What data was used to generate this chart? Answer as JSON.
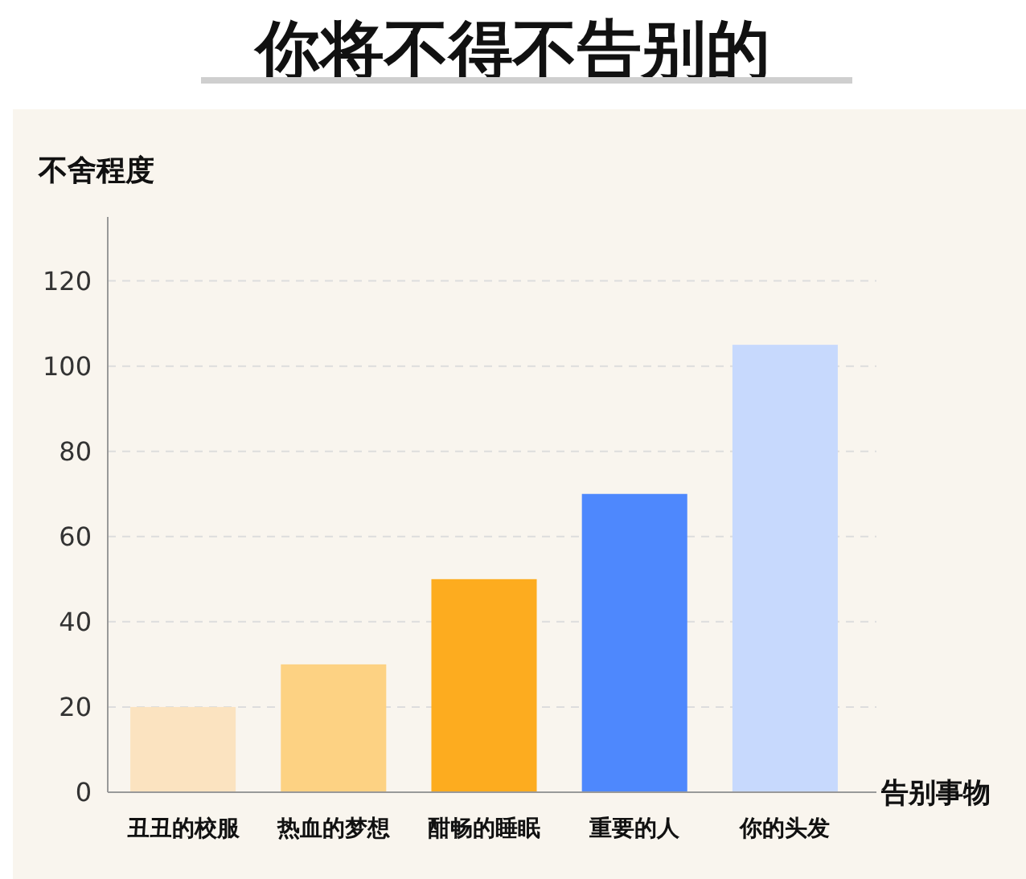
{
  "chart_data": {
    "type": "bar",
    "title": "你将不得不告别的",
    "ylabel": "不舍程度",
    "xlabel": "告别事物",
    "categories": [
      "丑丑的校服",
      "热血的梦想",
      "酣畅的睡眠",
      "重要的人",
      "你的头发"
    ],
    "values": [
      20,
      30,
      50,
      70,
      105
    ],
    "colors": [
      "#fbe3c0",
      "#fdd283",
      "#fdac1f",
      "#4e88fd",
      "#c7d9fd"
    ],
    "ylim": [
      0,
      135
    ],
    "yticks": [
      0,
      20,
      40,
      60,
      80,
      100,
      120
    ],
    "grid": "y"
  }
}
